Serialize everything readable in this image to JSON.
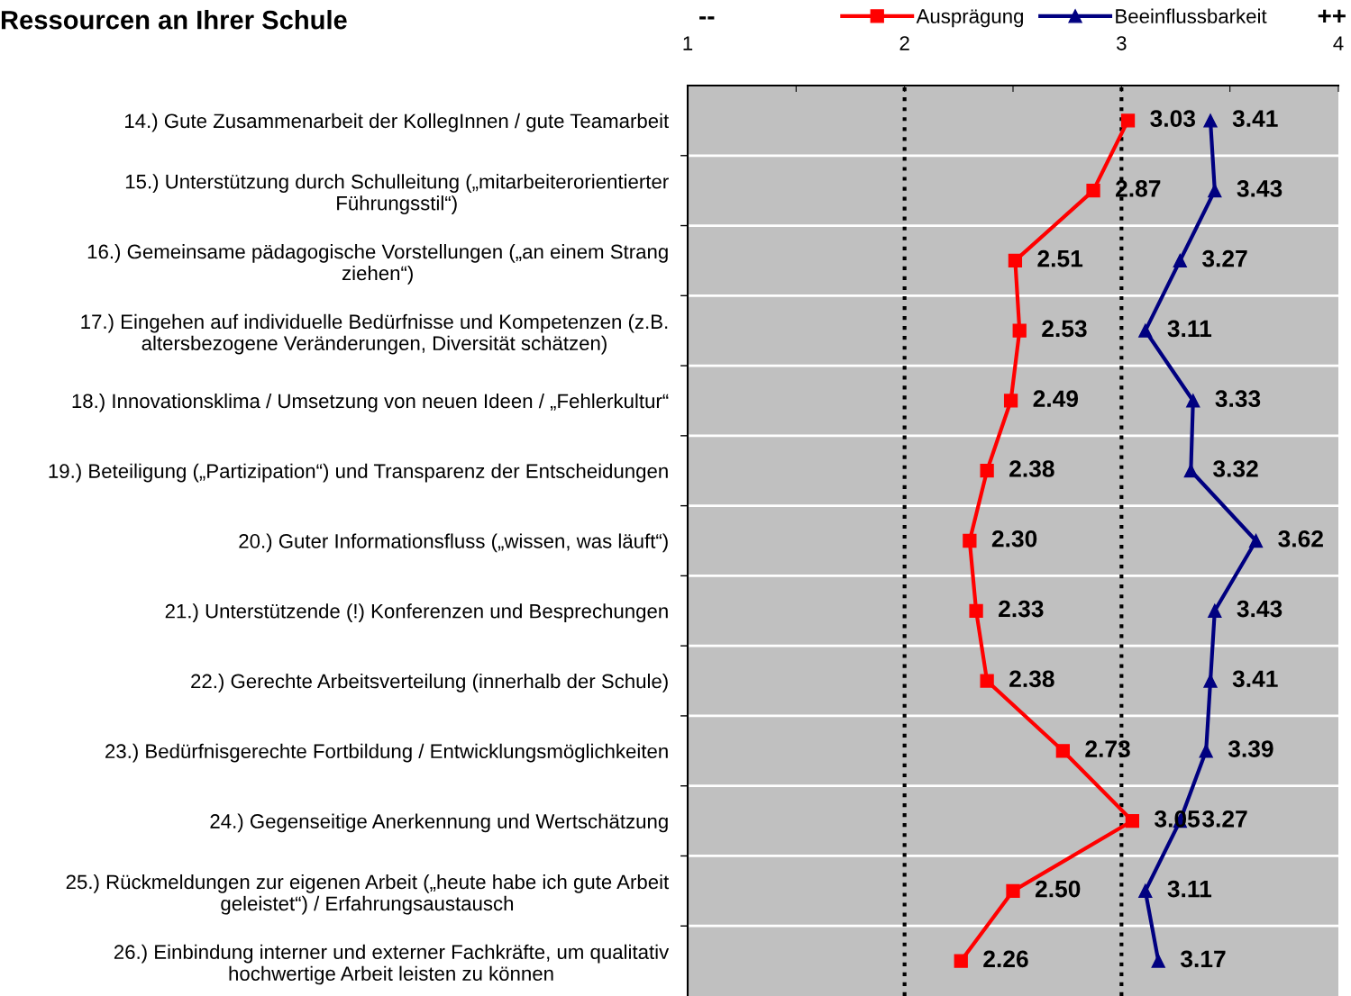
{
  "chart_data": {
    "type": "line",
    "orientation": "horizontal",
    "title": "Ressourcen an Ihrer Schule",
    "annotations": [
      "--",
      "++"
    ],
    "categories": [
      "14.) Gute Zusammenarbeit der KollegInnen / gute Teamarbeit",
      "15.) Unterstützung durch Schulleitung („mitarbeiterorientierter\nFührungsstil“)",
      "16.) Gemeinsame pädagogische Vorstellungen („an einem Strang\nziehen“)",
      "17.) Eingehen auf individuelle Bedürfnisse und Kompetenzen (z.B.\naltersbezogene Veränderungen, Diversität schätzen)",
      "18.) Innovationsklima / Umsetzung von neuen Ideen / „Fehlerkultur“",
      "19.) Beteiligung („Partizipation“) und Transparenz der Entscheidungen",
      "20.) Guter Informationsfluss („wissen, was läuft“)",
      "21.) Unterstützende (!) Konferenzen und Besprechungen",
      "22.) Gerechte Arbeitsverteilung (innerhalb der Schule)",
      "23.) Bedürfnisgerechte Fortbildung / Entwicklungsmöglichkeiten",
      "24.) Gegenseitige Anerkennung und Wertschätzung",
      "25.) Rückmeldungen zur eigenen Arbeit („heute habe ich gute Arbeit\ngeleistet“) / Erfahrungsaustausch",
      "26.) Einbindung interner und externer Fachkräfte, um qualitativ\nhochwertige Arbeit leisten zu können"
    ],
    "series": [
      {
        "name": "Ausprägung",
        "color": "#ff0000",
        "marker": "square",
        "values": [
          3.03,
          2.87,
          2.51,
          2.53,
          2.49,
          2.38,
          2.3,
          2.33,
          2.38,
          2.73,
          3.05,
          2.5,
          2.26
        ],
        "value_labels": [
          "3.03",
          "2.87",
          "2.51",
          "2.53",
          "2.49",
          "2.38",
          "2.30",
          "2.33",
          "2.38",
          "2.73",
          "3.05",
          "2.50",
          "2.26"
        ]
      },
      {
        "name": "Beeinflussbarkeit",
        "color": "#000080",
        "marker": "triangle",
        "values": [
          3.41,
          3.43,
          3.27,
          3.11,
          3.33,
          3.32,
          3.62,
          3.43,
          3.41,
          3.39,
          3.27,
          3.11,
          3.17
        ],
        "value_labels": [
          "3.41",
          "3.43",
          "3.27",
          "3.11",
          "3.33",
          "3.32",
          "3.62",
          "3.43",
          "3.41",
          "3.39",
          "3.27",
          "3.11",
          "3.17"
        ]
      }
    ],
    "xlim": [
      1,
      4
    ],
    "xticks": [
      1,
      {
        "value": 1.5,
        "label": null
      },
      2,
      {
        "value": 2.5,
        "label": null
      },
      3,
      {
        "value": 3.5,
        "label": null
      },
      4
    ],
    "ref_lines": [
      {
        "axis": "x",
        "value": 2,
        "color": "#000000",
        "line_style": "dotted"
      },
      {
        "axis": "x",
        "value": 3,
        "color": "#000000",
        "line_style": "dotted"
      }
    ],
    "grid": "y",
    "legend": "top",
    "line_style": "solid"
  }
}
